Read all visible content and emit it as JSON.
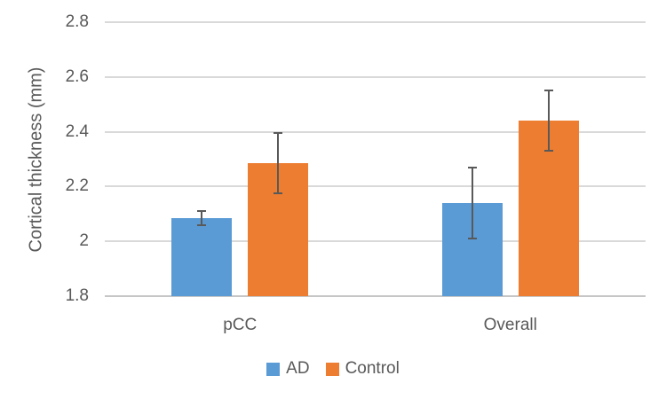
{
  "chart_data": {
    "type": "bar",
    "title": "",
    "xlabel": "",
    "ylabel": "Cortical thickness (mm)",
    "categories": [
      "pCC",
      "Overall"
    ],
    "series": [
      {
        "name": "AD",
        "color": "#5B9BD5",
        "values": [
          2.085,
          2.14
        ],
        "errors": [
          0.025,
          0.13
        ]
      },
      {
        "name": "Control",
        "color": "#ED7D31",
        "values": [
          2.285,
          2.44
        ],
        "errors": [
          0.11,
          0.11
        ]
      }
    ],
    "ylim": [
      1.8,
      2.8
    ],
    "ytick_labels": [
      "1.8",
      "2",
      "2.2",
      "2.4",
      "2.6",
      "2.8"
    ],
    "grid": true,
    "legend_position": "bottom",
    "colors": {
      "gridline": "#D9D9D9",
      "axis_line": "#C6C6C6",
      "error_bar": "#595959",
      "text": "#595959",
      "background": "#FFFFFF"
    }
  }
}
